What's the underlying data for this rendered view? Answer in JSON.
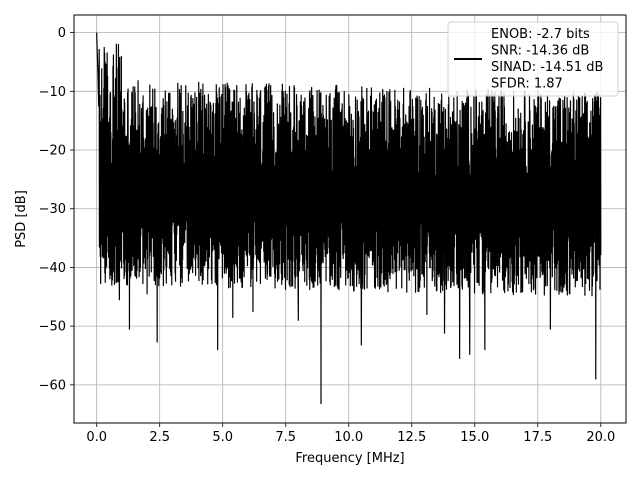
{
  "chart_data": {
    "type": "line",
    "title": "",
    "xlabel": "Frequency [MHz]",
    "ylabel": "PSD [dB]",
    "xlim": [
      -0.9,
      21.0
    ],
    "ylim": [
      -66.5,
      3.0
    ],
    "grid": true,
    "xticks": [
      0.0,
      2.5,
      5.0,
      7.5,
      10.0,
      12.5,
      15.0,
      17.5,
      20.0
    ],
    "xtick_labels": [
      "0.0",
      "2.5",
      "5.0",
      "7.5",
      "10.0",
      "12.5",
      "15.0",
      "17.5",
      "20.0"
    ],
    "yticks": [
      0,
      -10,
      -20,
      -30,
      -40,
      -50,
      -60
    ],
    "ytick_labels": [
      "0",
      "−10",
      "−20",
      "−30",
      "−40",
      "−50",
      "−60"
    ],
    "line_color": "#000000",
    "legend": {
      "placement": "top-right",
      "entries": [
        "ENOB: -2.7 bits",
        "SNR: -14.36 dB",
        "SINAD: -14.51 dB",
        "SFDR: 1.87"
      ]
    },
    "series": [
      {
        "x_range": [
          0.0,
          20.0
        ],
        "baseline_db": -27,
        "envelope_top_db": -17,
        "envelope_bottom_db": -38,
        "peaks": [
          {
            "x": 0.0,
            "y": 0.0
          },
          {
            "x": 0.02,
            "y": -3.0
          },
          {
            "x": 0.05,
            "y": -7.0
          },
          {
            "x": 0.08,
            "y": -12.5
          }
        ],
        "notches": [
          {
            "x": 0.6,
            "y": -43.0
          },
          {
            "x": 0.9,
            "y": -45.5
          },
          {
            "x": 1.3,
            "y": -50.5
          },
          {
            "x": 2.0,
            "y": -44.5
          },
          {
            "x": 2.4,
            "y": -52.7
          },
          {
            "x": 4.8,
            "y": -54.0
          },
          {
            "x": 5.4,
            "y": -48.5
          },
          {
            "x": 6.2,
            "y": -47.5
          },
          {
            "x": 8.0,
            "y": -49.0
          },
          {
            "x": 8.9,
            "y": -63.2
          },
          {
            "x": 10.5,
            "y": -53.2
          },
          {
            "x": 13.1,
            "y": -48.0
          },
          {
            "x": 13.8,
            "y": -51.2
          },
          {
            "x": 14.4,
            "y": -55.5
          },
          {
            "x": 14.8,
            "y": -54.8
          },
          {
            "x": 15.4,
            "y": -54.0
          },
          {
            "x": 18.0,
            "y": -50.5
          },
          {
            "x": 19.8,
            "y": -59.0
          }
        ]
      }
    ]
  }
}
